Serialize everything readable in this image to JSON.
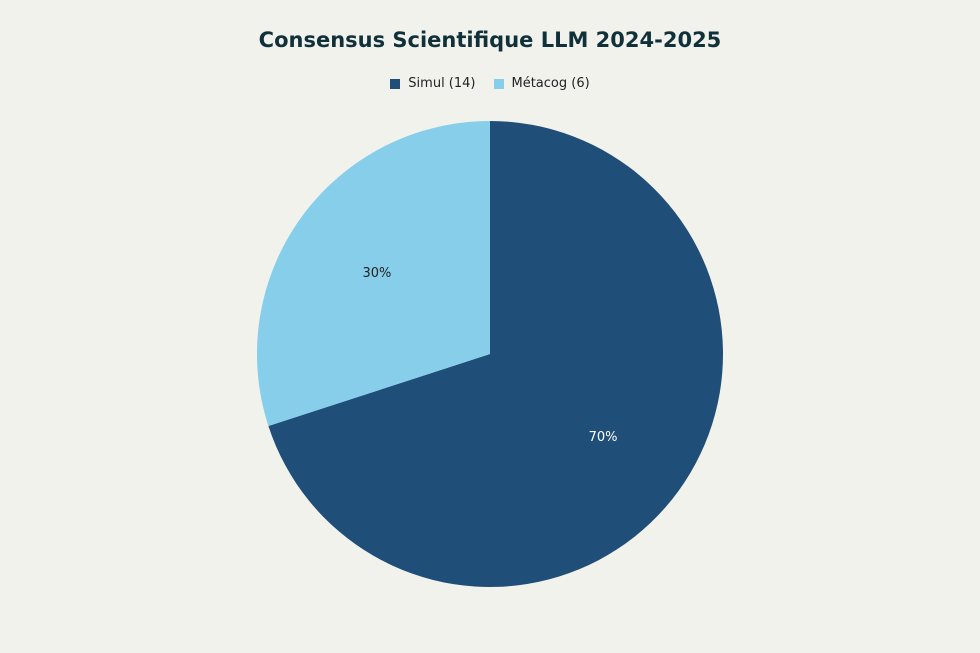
{
  "chart_data": {
    "type": "pie",
    "title": "Consensus Scientifique LLM 2024-2025",
    "legend_position": "top",
    "slices": [
      {
        "name": "Simul (14)",
        "value": 14,
        "label": "70%",
        "color": "#1f4e79"
      },
      {
        "name": "Métacog (6)",
        "value": 6,
        "label": "30%",
        "color": "#87ceeb"
      }
    ],
    "label_colors": [
      "#ffffff",
      "#222222"
    ]
  }
}
